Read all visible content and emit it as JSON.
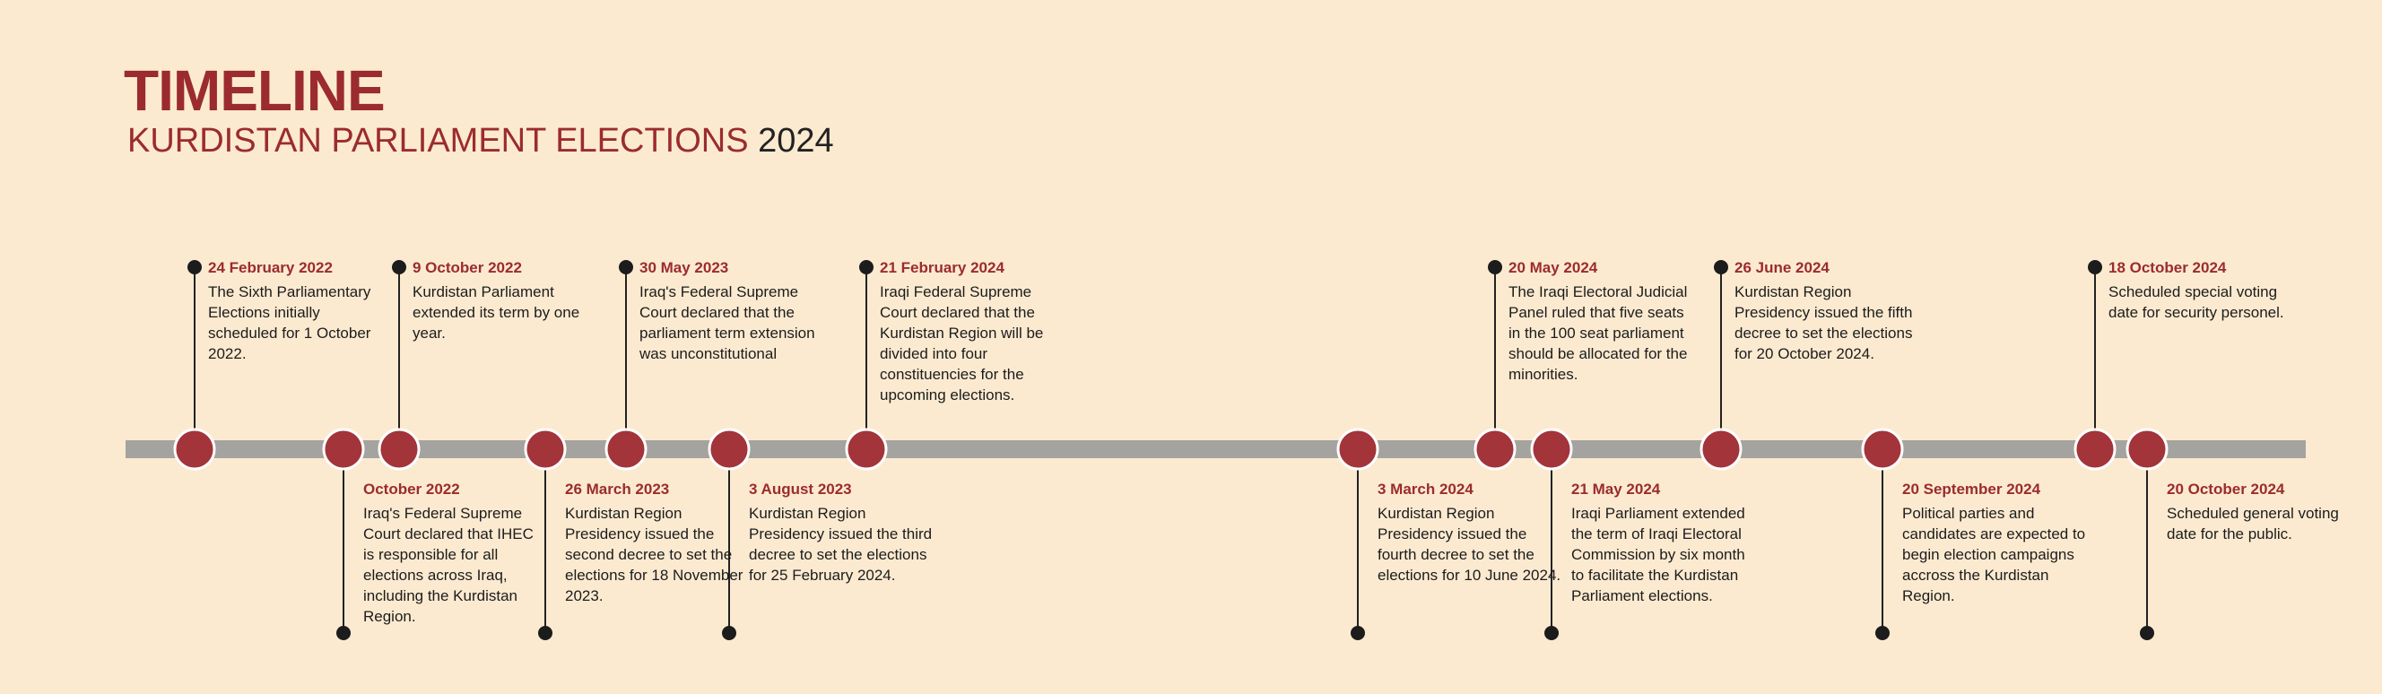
{
  "header": {
    "title": "TIMELINE",
    "subtitle": "KURDISTAN PARLIAMENT ELECTIONS",
    "subtitle_year": "2024"
  },
  "events": [
    {
      "date": "24 February 2022",
      "text": "The Sixth Parliamentary Elections initially scheduled for 1 October 2022."
    },
    {
      "date": "October 2022",
      "text": "Iraq's Federal Supreme Court declared that IHEC is responsible for all elections across Iraq, including the Kurdistan Region."
    },
    {
      "date": "9 October 2022",
      "text": "Kurdistan Parliament extended its term by one year."
    },
    {
      "date": "26 March 2023",
      "text": "Kurdistan Region Presidency issued the second decree to set the elections for 18 November 2023."
    },
    {
      "date": "30 May 2023",
      "text": "Iraq's Federal Supreme Court declared that the parliament term extension was unconstitutional"
    },
    {
      "date": "3 August 2023",
      "text": "Kurdistan Region Presidency issued the third decree to set the elections for 25 February 2024."
    },
    {
      "date": "21 February 2024",
      "text": "Iraqi Federal Supreme Court declared that the Kurdistan Region will be divided into four constituencies for the upcoming elections."
    },
    {
      "date": "3 March 2024",
      "text": "Kurdistan Region Presidency issued the fourth decree to set the elections for 10 June 2024."
    },
    {
      "date": "20 May 2024",
      "text": "The Iraqi Electoral Judicial Panel ruled that five seats in the 100 seat parliament should be allocated for the minorities."
    },
    {
      "date": "21 May 2024",
      "text": "Iraqi Parliament extended the term of Iraqi Electoral Commission by six month to facilitate the Kurdistan Parliament elections."
    },
    {
      "date": "26 June 2024",
      "text": "Kurdistan Region Presidency issued the fifth decree to set the elections for 20 October 2024."
    },
    {
      "date": "20 September 2024",
      "text": "Political parties and candidates are expected to begin election campaigns accross the Kurdistan Region."
    },
    {
      "date": "18 October 2024",
      "text": "Scheduled special voting date for security personel."
    },
    {
      "date": "20 October 2024",
      "text": "Scheduled general voting date for the public."
    }
  ]
}
